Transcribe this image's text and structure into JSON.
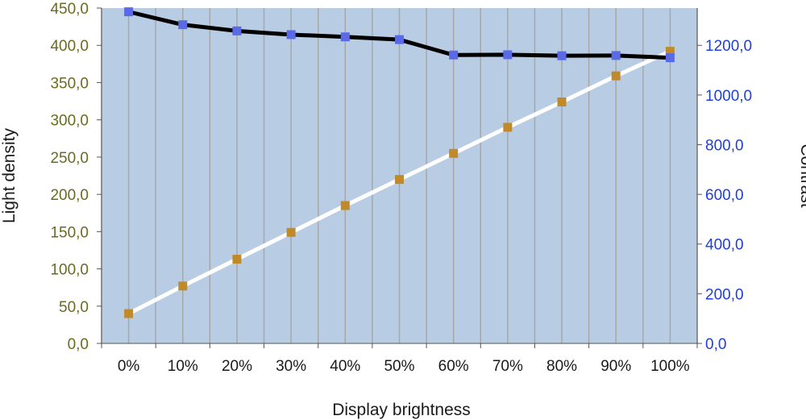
{
  "chart_data": {
    "type": "line",
    "categories": [
      "0%",
      "10%",
      "20%",
      "30%",
      "40%",
      "50%",
      "60%",
      "70%",
      "80%",
      "90%",
      "100%"
    ],
    "series": [
      {
        "axis": "left",
        "values": [
          40,
          77,
          113,
          149,
          185,
          220,
          255,
          290,
          324,
          359,
          392
        ],
        "line_color": "#ffffff",
        "marker_color": "#c08a2b"
      },
      {
        "axis": "right",
        "values": [
          1335,
          1283,
          1258,
          1243,
          1234,
          1223,
          1161,
          1162,
          1158,
          1159,
          1150
        ],
        "line_color": "#000000",
        "marker_color": "#5a6ae6"
      }
    ],
    "xlabel": "Display brightness",
    "ylabel": "Light density",
    "y2label": "Contrast",
    "ylim": [
      0,
      450
    ],
    "y2lim": [
      0,
      1350
    ],
    "yticks": [
      "0,0",
      "50,0",
      "100,0",
      "150,0",
      "200,0",
      "250,0",
      "300,0",
      "350,0",
      "400,0",
      "450,0"
    ],
    "y2ticks": [
      "0,0",
      "200,0",
      "400,0",
      "600,0",
      "800,0",
      "1000,0",
      "1200,0"
    ],
    "grid": true,
    "legend": "none",
    "colors": {
      "plot_background": "#b8cde4",
      "grid": "#a7a7a7",
      "left_tick_color": "#6b6b1f",
      "right_tick_color": "#1f3fd6"
    }
  }
}
